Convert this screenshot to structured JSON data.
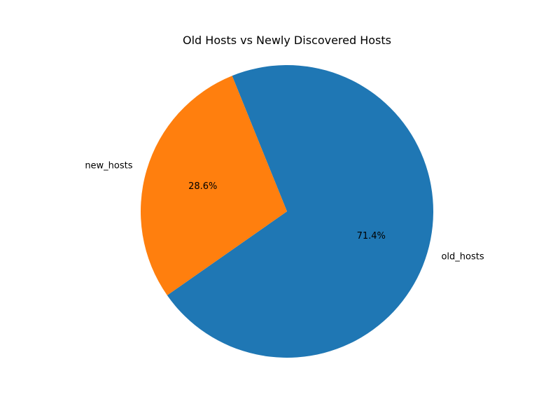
{
  "chart_data": {
    "type": "pie",
    "title": "Old Hosts vs Newly Discovered Hosts",
    "slices": [
      {
        "label": "old_hosts",
        "value": 71.4,
        "pct_label": "71.4%",
        "color": "#1f77b4"
      },
      {
        "label": "new_hosts",
        "value": 28.6,
        "pct_label": "28.6%",
        "color": "#ff7f0e"
      }
    ]
  }
}
